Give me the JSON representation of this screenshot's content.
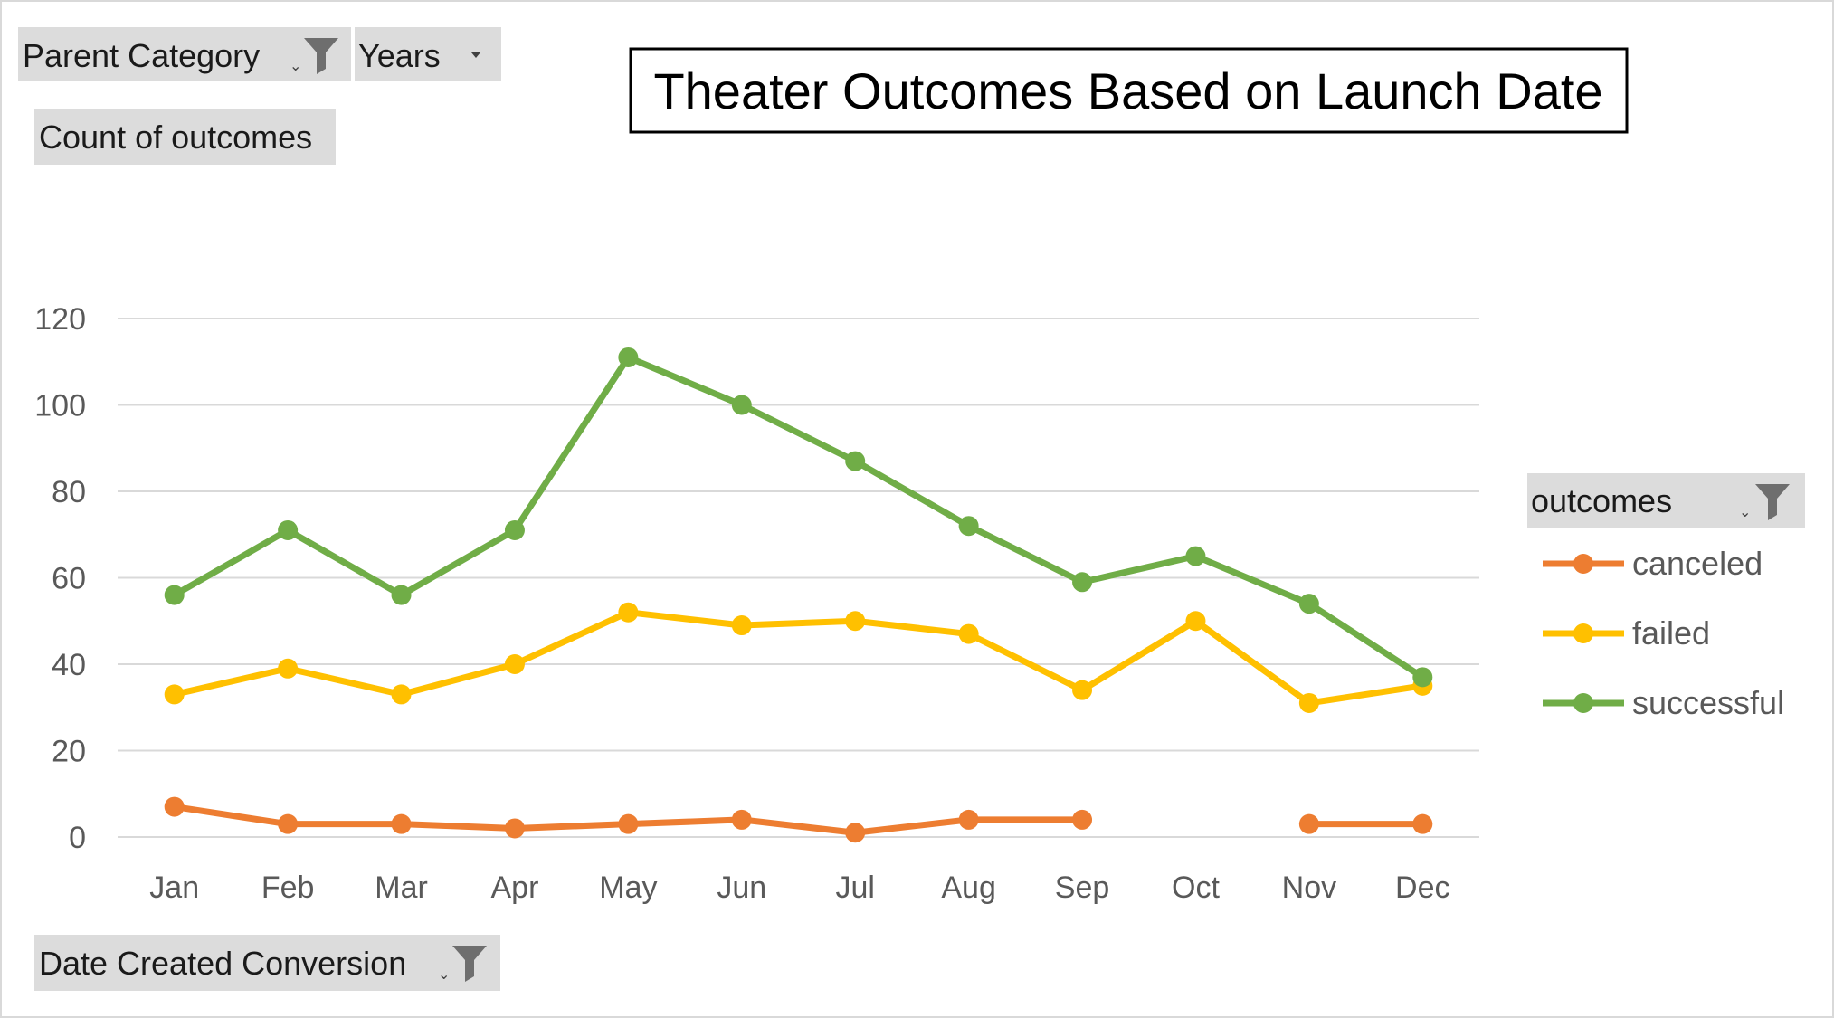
{
  "filters": {
    "parent_category": {
      "label": "Parent Category",
      "icon": "funnel-icon"
    },
    "years": {
      "label": "Years",
      "icon": "dropdown-arrow-icon"
    },
    "values_field": {
      "label": "Count of outcomes"
    },
    "axis_field": {
      "label": "Date Created Conversion",
      "icon": "funnel-icon"
    },
    "legend_field": {
      "label": "outcomes",
      "icon": "funnel-icon"
    }
  },
  "chart_data": {
    "type": "line",
    "title": "Theater Outcomes Based on Launch Date",
    "xlabel": "",
    "ylabel": "",
    "categories": [
      "Jan",
      "Feb",
      "Mar",
      "Apr",
      "May",
      "Jun",
      "Jul",
      "Aug",
      "Sep",
      "Oct",
      "Nov",
      "Dec"
    ],
    "ylim": [
      0,
      120
    ],
    "yticks": [
      0,
      20,
      40,
      60,
      80,
      100,
      120
    ],
    "grid": true,
    "legend_position": "right",
    "series": [
      {
        "name": "canceled",
        "color": "#ED7D31",
        "values": [
          7,
          3,
          3,
          2,
          3,
          4,
          1,
          4,
          4,
          null,
          3,
          3
        ]
      },
      {
        "name": "failed",
        "color": "#FFC000",
        "values": [
          33,
          39,
          33,
          40,
          52,
          49,
          50,
          47,
          34,
          50,
          31,
          35
        ]
      },
      {
        "name": "successful",
        "color": "#70AD47",
        "values": [
          56,
          71,
          56,
          71,
          111,
          100,
          87,
          72,
          59,
          65,
          54,
          37
        ]
      }
    ]
  }
}
